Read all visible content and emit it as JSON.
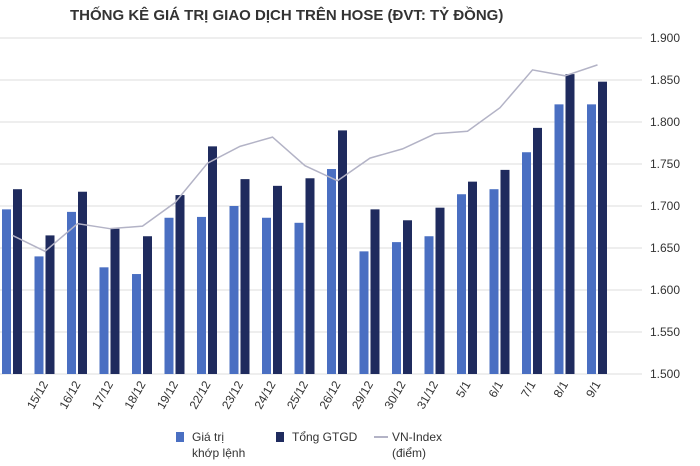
{
  "chart_data": {
    "type": "bar-line",
    "title": "THỐNG KÊ GIÁ TRỊ GIAO DỊCH TRÊN HOSE (ĐVT: TỶ ĐỒNG)",
    "categories": [
      null,
      "15/12",
      "16/12",
      "17/12",
      "18/12",
      "19/12",
      "22/12",
      "23/12",
      "24/12",
      "25/12",
      "26/12",
      "29/12",
      "30/12",
      "31/12",
      "5/1",
      "6/1",
      "7/1",
      "8/1",
      "9/1"
    ],
    "series": [
      {
        "name": "Giá trị\nkhớp lệnh",
        "type": "bar",
        "color": "#4a6fc2",
        "values": [
          1696,
          1640,
          1693,
          1627,
          1619,
          1686,
          1687,
          1700,
          1686,
          1680,
          1744,
          1646,
          1657,
          1664,
          1714,
          1720,
          1764,
          1821,
          1821
        ]
      },
      {
        "name": "Tổng GTGD",
        "type": "bar",
        "color": "#1f2b5e",
        "values": [
          1720,
          1665,
          1717,
          1673,
          1664,
          1713,
          1771,
          1732,
          1724,
          1733,
          1790,
          1696,
          1683,
          1698,
          1729,
          1743,
          1793,
          1857,
          1848
        ]
      },
      {
        "name": "VN-Index\n(điểm)",
        "type": "line",
        "color": "#b3b3c6",
        "values": [
          1665,
          1646,
          1679,
          1673,
          1676,
          1704,
          1751,
          1771,
          1782,
          1748,
          1730,
          1757,
          1768,
          1786,
          1789,
          1817,
          1862,
          1855,
          1868
        ]
      }
    ],
    "ylim": [
      1500,
      1900
    ],
    "yticks": [
      {
        "value": 1500,
        "label": "1.500"
      },
      {
        "value": 1550,
        "label": "1.550"
      },
      {
        "value": 1600,
        "label": "1.600"
      },
      {
        "value": 1650,
        "label": "1.650"
      },
      {
        "value": 1700,
        "label": "1.700"
      },
      {
        "value": 1750,
        "label": "1.750"
      },
      {
        "value": 1800,
        "label": "1.800"
      },
      {
        "value": 1850,
        "label": "1.850"
      },
      {
        "value": 1900,
        "label": "1.900"
      }
    ],
    "y_axis_side": "right",
    "grid": true
  }
}
